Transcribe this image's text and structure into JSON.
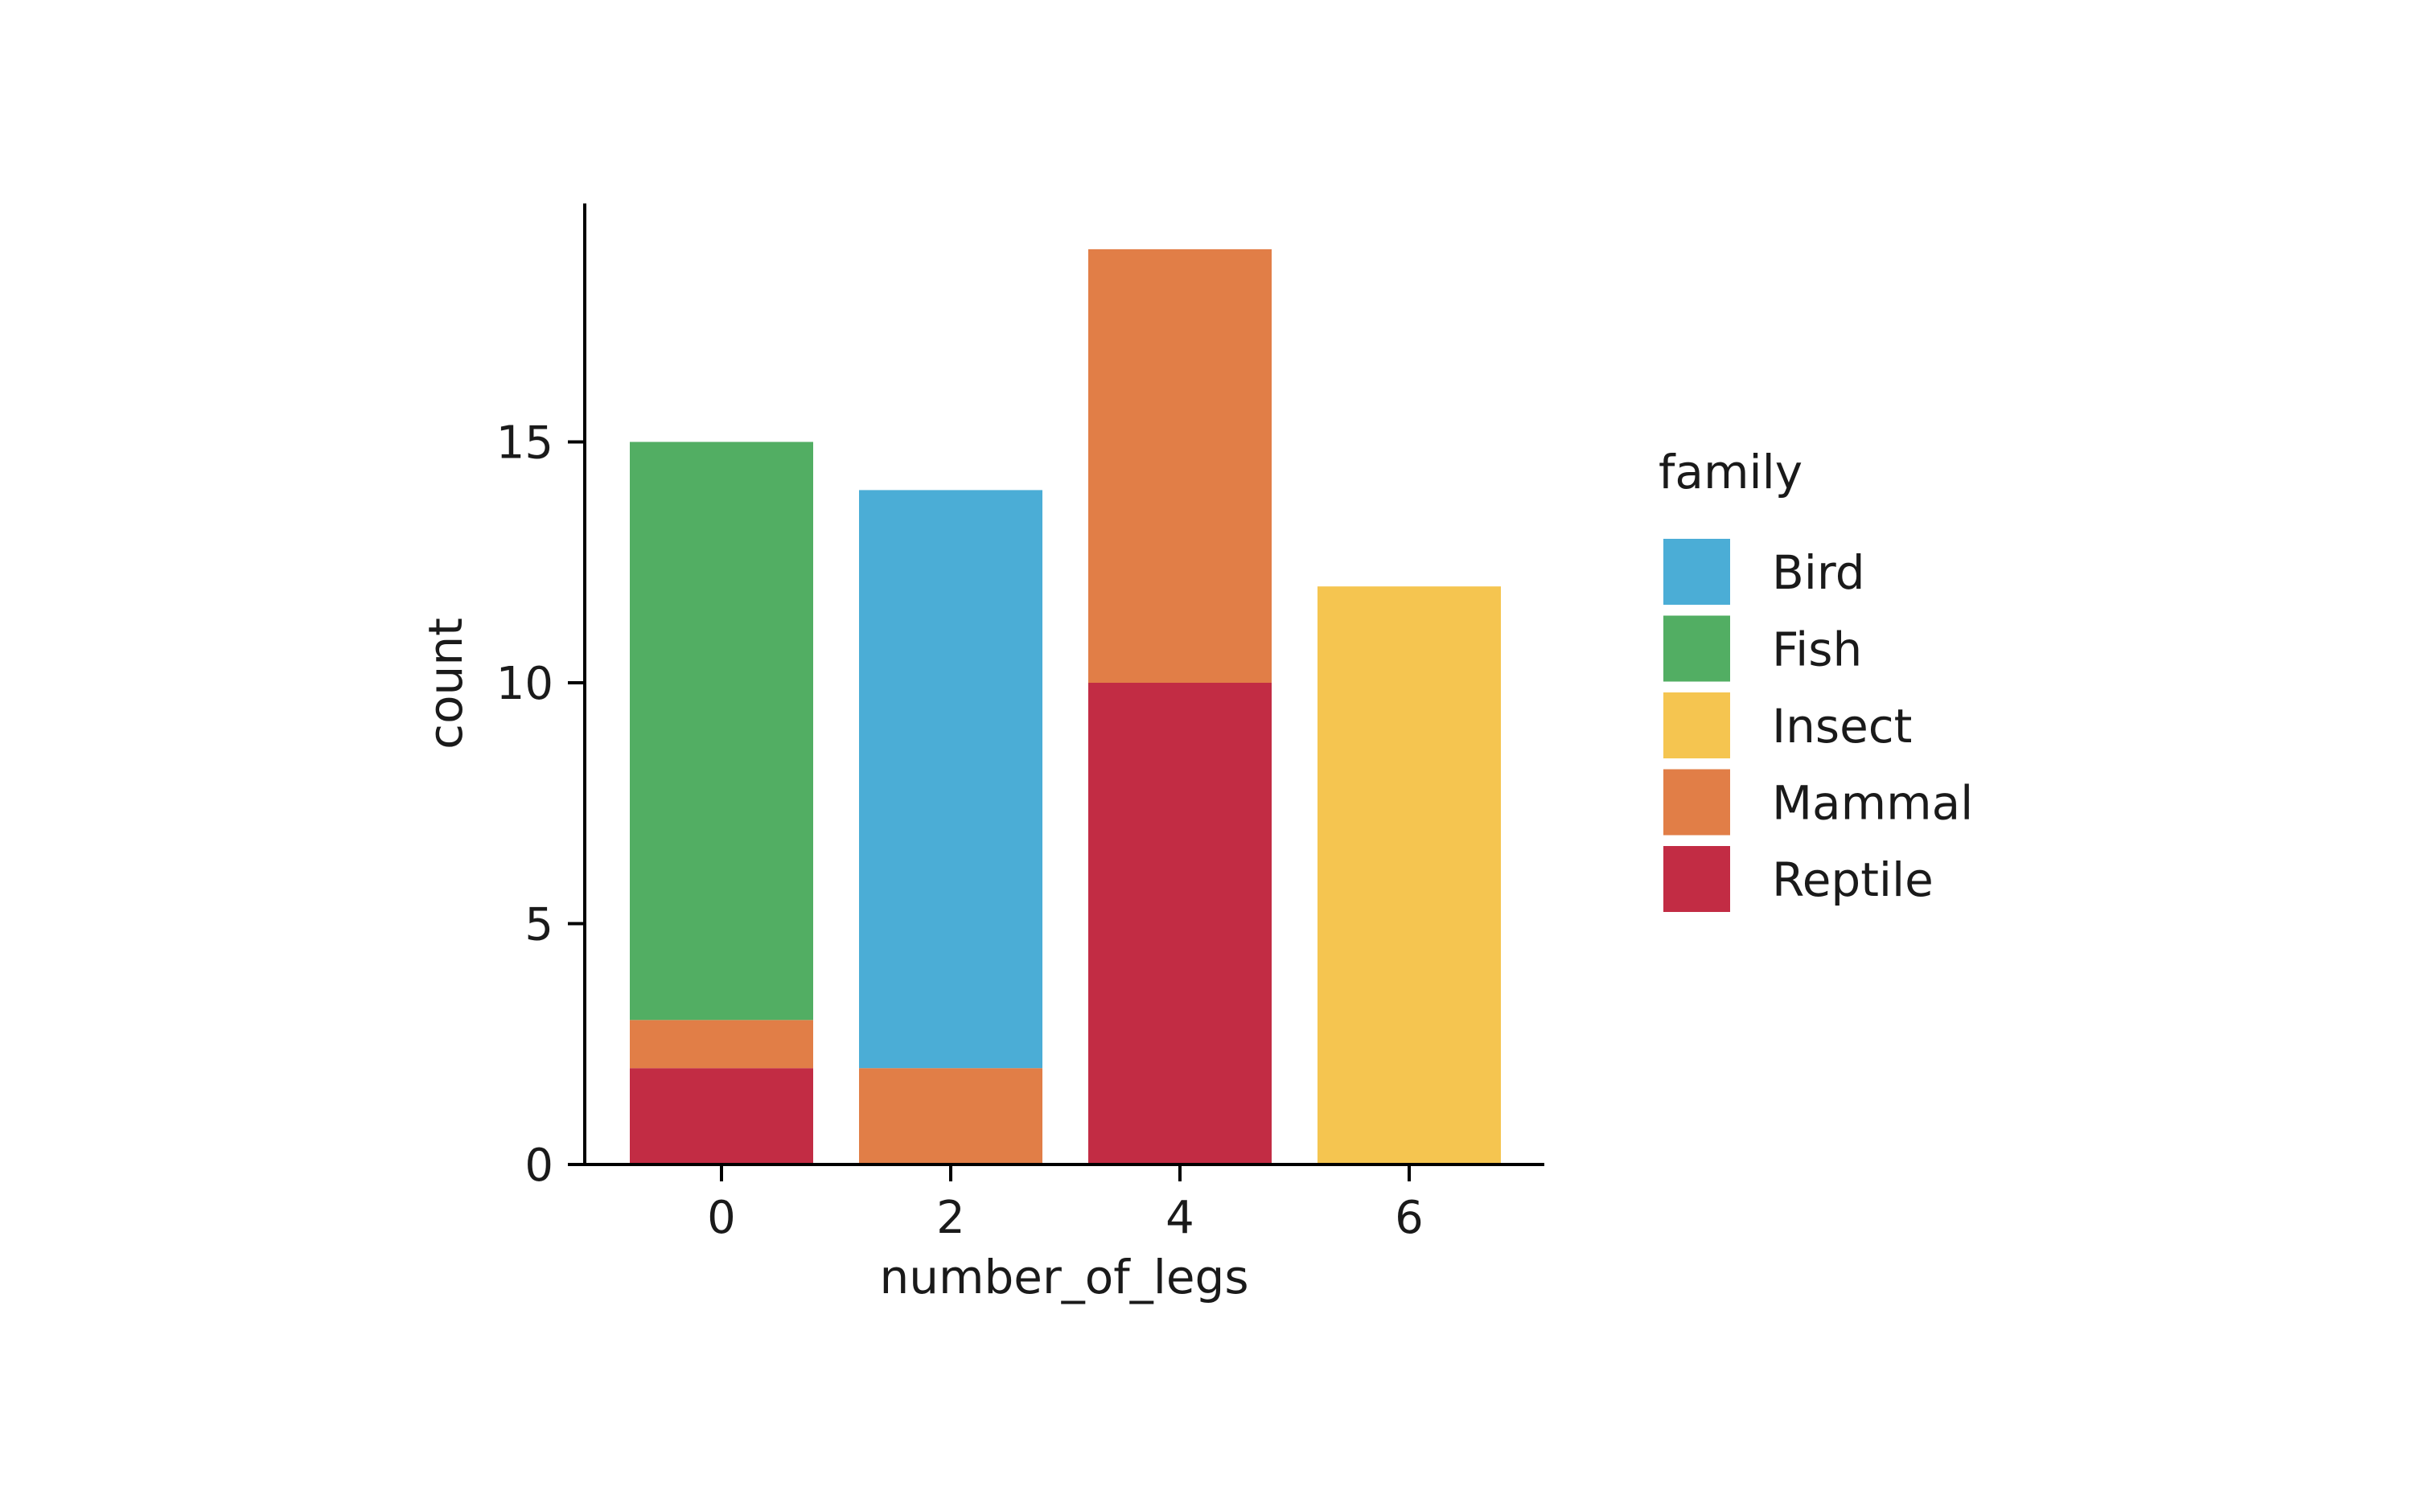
{
  "chart_data": {
    "type": "bar",
    "stacked": true,
    "categories": [
      "0",
      "2",
      "4",
      "6"
    ],
    "xlabel": "number_of_legs",
    "ylabel": "count",
    "ylim": [
      0,
      20
    ],
    "yticks": [
      0,
      5,
      10,
      15
    ],
    "grid": false,
    "legend": {
      "title": "family",
      "position": "right"
    },
    "series": [
      {
        "name": "Bird",
        "color": "#4badd6",
        "values": [
          0,
          12,
          0,
          0
        ]
      },
      {
        "name": "Fish",
        "color": "#52ae63",
        "values": [
          12,
          0,
          0,
          0
        ]
      },
      {
        "name": "Insect",
        "color": "#f5c550",
        "values": [
          0,
          0,
          0,
          12
        ]
      },
      {
        "name": "Mammal",
        "color": "#e17e47",
        "values": [
          1,
          2,
          9,
          0
        ]
      },
      {
        "name": "Reptile",
        "color": "#c22c44",
        "values": [
          2,
          0,
          10,
          0
        ]
      }
    ],
    "stack_order_bottom_to_top": [
      "Reptile",
      "Mammal",
      "Fish",
      "Bird",
      "Insect"
    ]
  }
}
